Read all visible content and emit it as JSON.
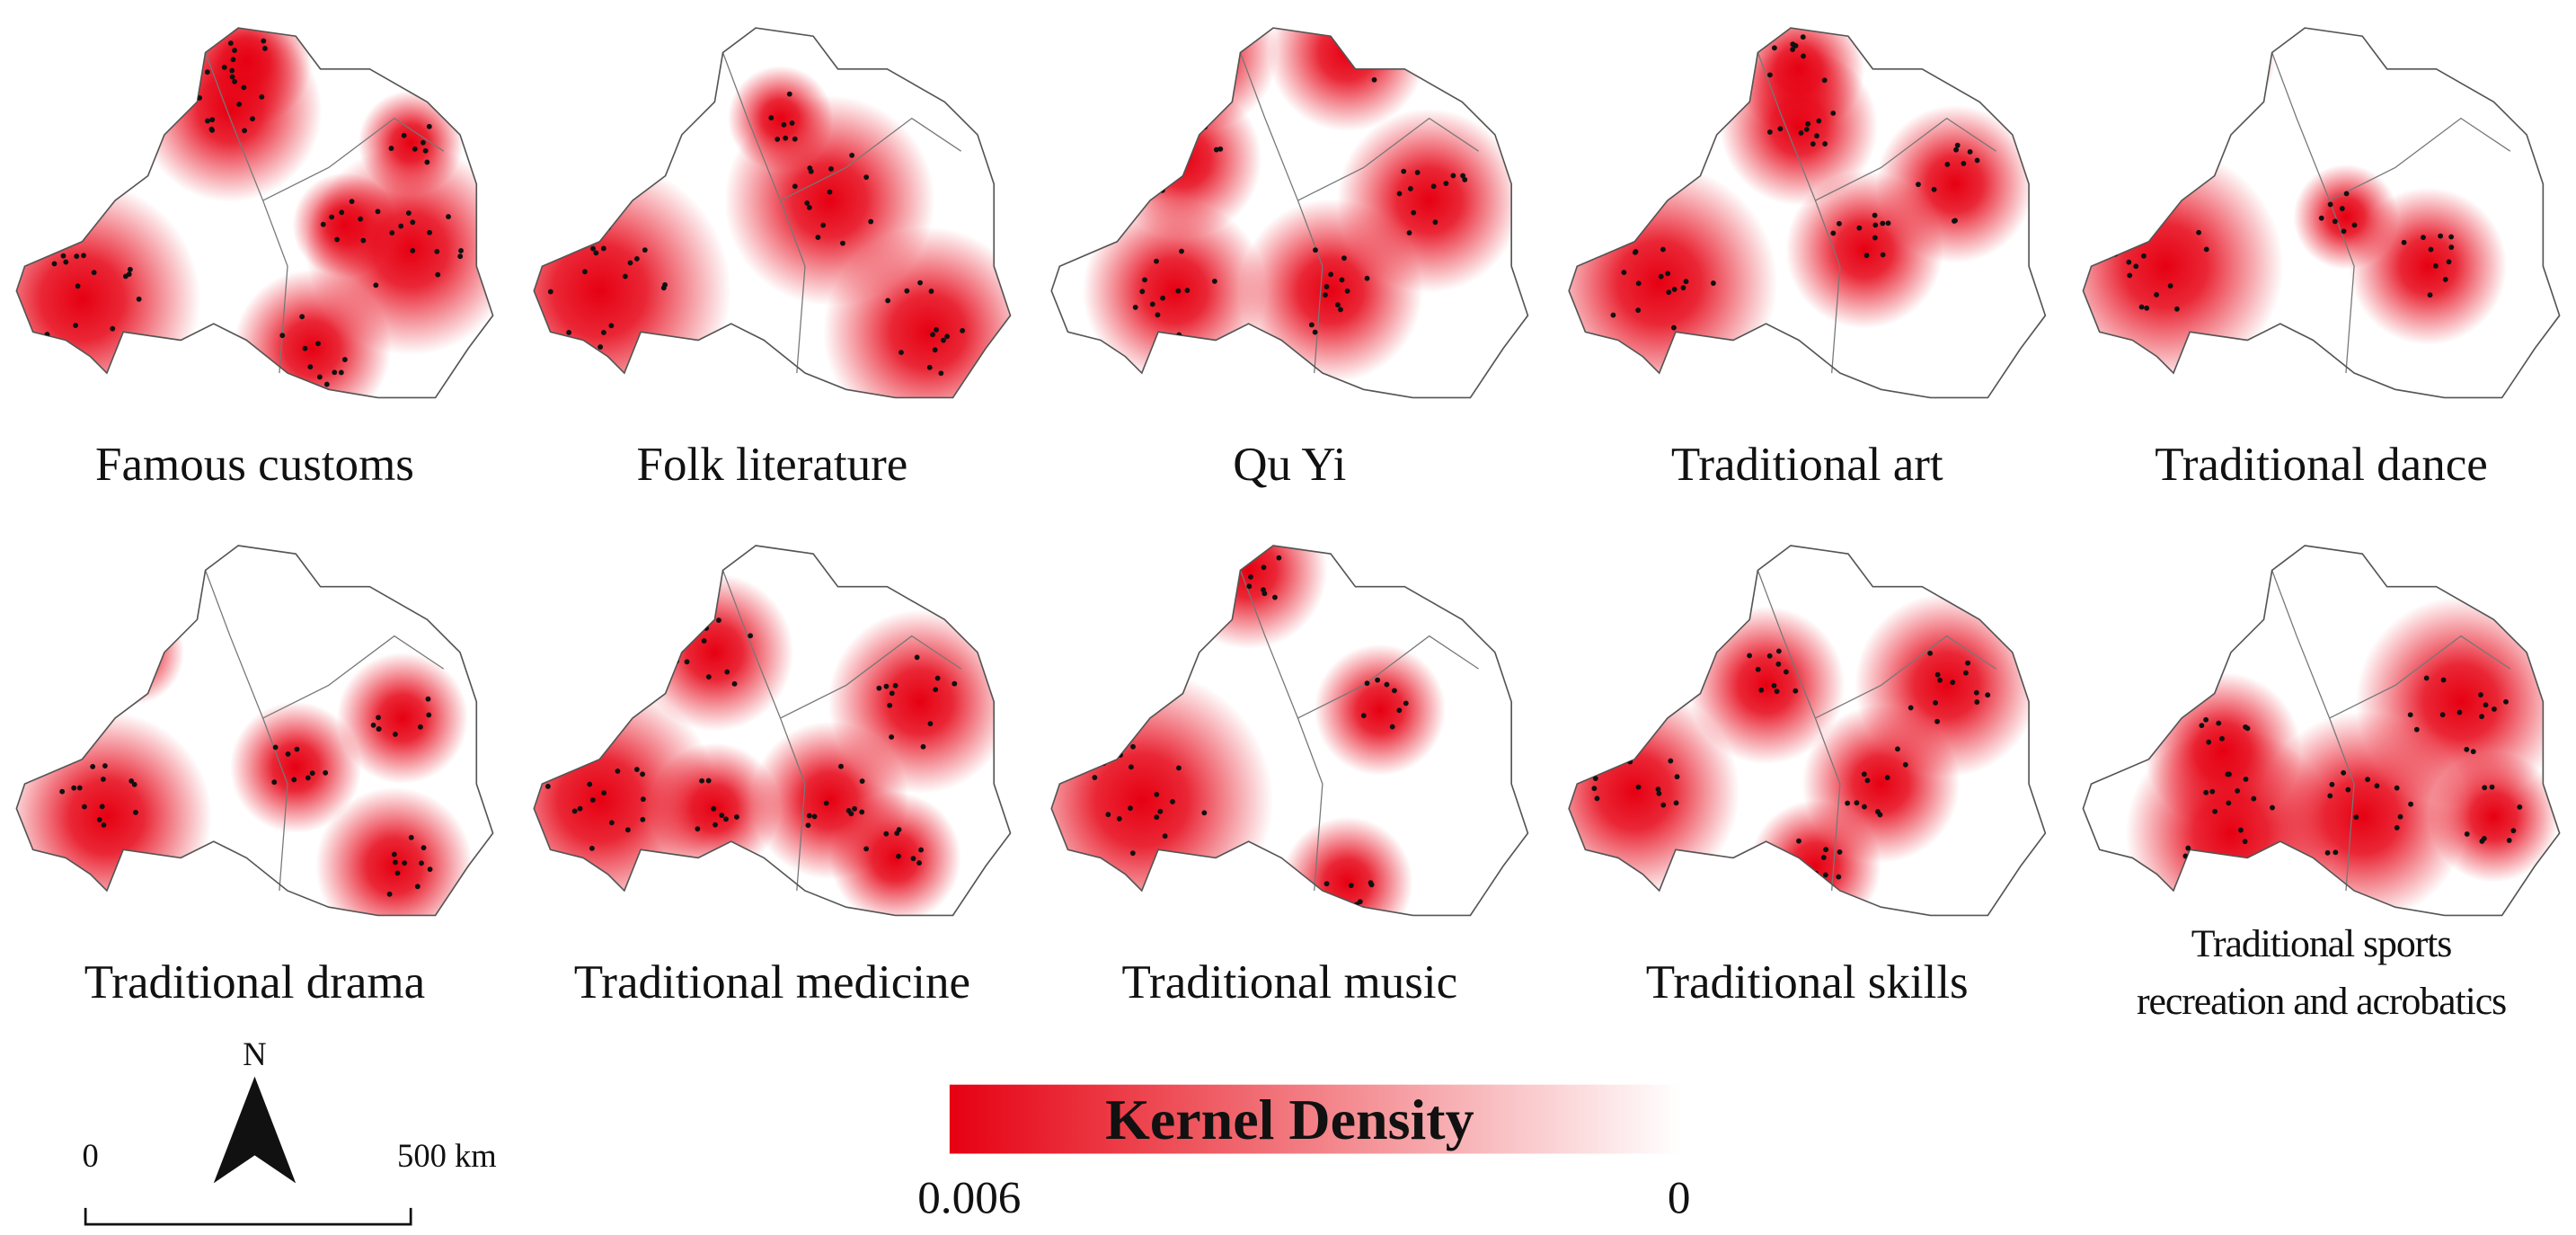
{
  "panels": [
    {
      "title": [
        "Famous customs"
      ]
    },
    {
      "title": [
        "Folk literature"
      ]
    },
    {
      "title": [
        "Qu Yi"
      ]
    },
    {
      "title": [
        "Traditional art"
      ]
    },
    {
      "title": [
        "Traditional dance"
      ]
    },
    {
      "title": [
        "Traditional drama"
      ]
    },
    {
      "title": [
        "Traditional medicine"
      ]
    },
    {
      "title": [
        "Traditional music"
      ]
    },
    {
      "title": [
        "Traditional skills"
      ]
    },
    {
      "title": [
        "Traditional sports",
        "recreation and acrobatics"
      ]
    }
  ],
  "legend": {
    "title": "Kernel Density",
    "max_label": "0.006",
    "min_label": "0"
  },
  "scale_bar": {
    "labels": [
      "0",
      "500 km"
    ]
  },
  "north_arrow": {
    "label": "N"
  }
}
